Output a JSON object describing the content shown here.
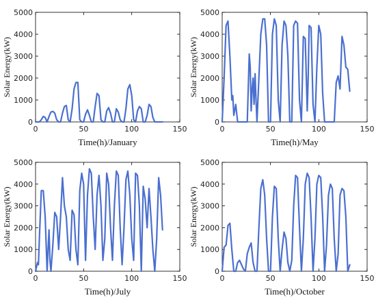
{
  "chart_data": [
    {
      "type": "line",
      "xlabel": "Time(h)/January",
      "ylabel": "Solar Energy(kW)",
      "xlim": [
        0,
        150
      ],
      "ylim": [
        0,
        5000
      ],
      "xticks": [
        0,
        50,
        100,
        150
      ],
      "yticks": [
        0,
        1000,
        2000,
        3000,
        4000,
        5000
      ],
      "grid": false,
      "color": "#4a6fcf",
      "series": [
        {
          "x": [
            0,
            4,
            6,
            8,
            10,
            12,
            14,
            16,
            18,
            20,
            22,
            24,
            26,
            28,
            30,
            32,
            34,
            36,
            38,
            40,
            42,
            44,
            46,
            48,
            50,
            52,
            54,
            56,
            58,
            60,
            62,
            64,
            66,
            68,
            70,
            72,
            74,
            76,
            78,
            80,
            82,
            84,
            86,
            88,
            90,
            92,
            94,
            96,
            98,
            100,
            102,
            104,
            106,
            108,
            110,
            112,
            114,
            116,
            118,
            120,
            122,
            124,
            126,
            128,
            130,
            132
          ],
          "y": [
            0,
            0,
            100,
            250,
            200,
            0,
            250,
            450,
            480,
            400,
            100,
            0,
            0,
            400,
            700,
            750,
            100,
            0,
            600,
            1500,
            1800,
            1800,
            100,
            0,
            0,
            350,
            550,
            300,
            0,
            0,
            700,
            1300,
            1200,
            100,
            0,
            0,
            500,
            650,
            400,
            0,
            0,
            600,
            450,
            100,
            0,
            0,
            600,
            1500,
            1700,
            1200,
            100,
            0,
            500,
            700,
            600,
            0,
            0,
            300,
            800,
            700,
            200,
            0,
            0,
            0,
            0,
            0
          ]
        }
      ]
    },
    {
      "type": "line",
      "xlabel": "Time(h)/May",
      "ylabel": "Solar Energy(kW)",
      "xlim": [
        0,
        150
      ],
      "ylim": [
        0,
        5000
      ],
      "xticks": [
        0,
        50,
        100,
        150
      ],
      "yticks": [
        0,
        1000,
        2000,
        3000,
        4000,
        5000
      ],
      "grid": false,
      "color": "#4a6fcf",
      "series": [
        {
          "x": [
            0,
            2,
            4,
            6,
            8,
            10,
            11,
            12,
            14,
            16,
            18,
            20,
            26,
            28,
            29,
            30,
            31,
            32,
            33,
            34,
            35,
            36,
            38,
            40,
            42,
            44,
            46,
            48,
            50,
            52,
            54,
            56,
            58,
            60,
            62,
            64,
            66,
            68,
            70,
            72,
            74,
            76,
            78,
            80,
            82,
            84,
            86,
            88,
            89,
            90,
            92,
            94,
            96,
            98,
            100,
            102,
            104,
            106,
            108,
            110,
            112,
            114,
            116,
            118,
            120,
            122,
            124,
            126,
            128,
            130,
            132
          ],
          "y": [
            0,
            2000,
            4400,
            4600,
            3000,
            1000,
            1200,
            300,
            800,
            0,
            0,
            0,
            0,
            3100,
            2500,
            500,
            1500,
            2000,
            800,
            2200,
            1000,
            0,
            2000,
            4000,
            4700,
            4700,
            3500,
            0,
            0,
            4000,
            4700,
            4400,
            1000,
            0,
            3500,
            4600,
            4400,
            3000,
            0,
            0,
            4400,
            4600,
            4500,
            1000,
            0,
            3900,
            3800,
            500,
            2000,
            4400,
            4300,
            800,
            0,
            2500,
            4400,
            4000,
            1300,
            0,
            0,
            0,
            0,
            0,
            0,
            1800,
            2100,
            1500,
            3900,
            3500,
            2500,
            2400,
            1400
          ]
        }
      ]
    },
    {
      "type": "line",
      "xlabel": "Time(h)/July",
      "ylabel": "Solar Energy(kW)",
      "xlim": [
        0,
        150
      ],
      "ylim": [
        0,
        5000
      ],
      "xticks": [
        0,
        50,
        100,
        150
      ],
      "yticks": [
        0,
        1000,
        2000,
        3000,
        4000,
        5000
      ],
      "grid": false,
      "color": "#4a6fcf",
      "series": [
        {
          "x": [
            0,
            2,
            3,
            4,
            6,
            8,
            10,
            12,
            13,
            14,
            15,
            16,
            18,
            20,
            22,
            24,
            26,
            28,
            30,
            32,
            34,
            36,
            38,
            40,
            42,
            44,
            46,
            48,
            50,
            52,
            54,
            56,
            58,
            60,
            62,
            64,
            66,
            68,
            70,
            72,
            74,
            76,
            78,
            80,
            82,
            84,
            86,
            88,
            90,
            92,
            94,
            96,
            98,
            100,
            102,
            104,
            106,
            108,
            110,
            112,
            114,
            116,
            118,
            120,
            122,
            124,
            126,
            128,
            130,
            132
          ],
          "y": [
            0,
            400,
            300,
            1500,
            3700,
            3700,
            2500,
            0,
            1000,
            1900,
            500,
            0,
            1200,
            2700,
            2500,
            1000,
            2500,
            4300,
            3000,
            2500,
            1000,
            500,
            2800,
            2600,
            1000,
            300,
            3700,
            4500,
            4000,
            500,
            3500,
            4700,
            4500,
            2500,
            1000,
            3500,
            4400,
            3000,
            500,
            1500,
            4500,
            4000,
            2000,
            500,
            3000,
            4600,
            4400,
            2000,
            300,
            2000,
            4200,
            4600,
            3500,
            1500,
            500,
            4500,
            4400,
            3000,
            0,
            3900,
            3300,
            2000,
            3800,
            2500,
            1000,
            0,
            1500,
            4300,
            3500,
            1900
          ]
        }
      ]
    },
    {
      "type": "line",
      "xlabel": "Time(h)/October",
      "ylabel": "Solar Energy(kW)",
      "xlim": [
        0,
        150
      ],
      "ylim": [
        0,
        5000
      ],
      "xticks": [
        0,
        50,
        100,
        150
      ],
      "yticks": [
        0,
        1000,
        2000,
        3000,
        4000,
        5000
      ],
      "grid": false,
      "color": "#4a6fcf",
      "series": [
        {
          "x": [
            0,
            2,
            4,
            6,
            8,
            10,
            12,
            14,
            16,
            18,
            20,
            22,
            24,
            26,
            28,
            30,
            32,
            34,
            36,
            38,
            40,
            42,
            44,
            46,
            48,
            50,
            52,
            54,
            56,
            58,
            60,
            62,
            64,
            66,
            68,
            70,
            72,
            74,
            76,
            78,
            80,
            82,
            84,
            86,
            88,
            90,
            92,
            94,
            96,
            98,
            100,
            102,
            104,
            106,
            108,
            110,
            112,
            114,
            116,
            118,
            120,
            122,
            124,
            126,
            128,
            130,
            132
          ],
          "y": [
            0,
            1100,
            1200,
            2100,
            2200,
            1000,
            0,
            0,
            400,
            500,
            300,
            100,
            0,
            800,
            1100,
            1300,
            400,
            0,
            0,
            2000,
            3800,
            4200,
            3500,
            1500,
            0,
            0,
            2500,
            3900,
            3800,
            1500,
            0,
            1000,
            1800,
            1500,
            400,
            0,
            500,
            3000,
            4400,
            4300,
            2000,
            0,
            1500,
            4000,
            4500,
            4300,
            2500,
            0,
            1500,
            4000,
            4400,
            4300,
            2500,
            0,
            1200,
            3500,
            4000,
            3800,
            1500,
            0,
            800,
            3500,
            3800,
            3700,
            2500,
            0,
            300
          ]
        }
      ]
    }
  ]
}
